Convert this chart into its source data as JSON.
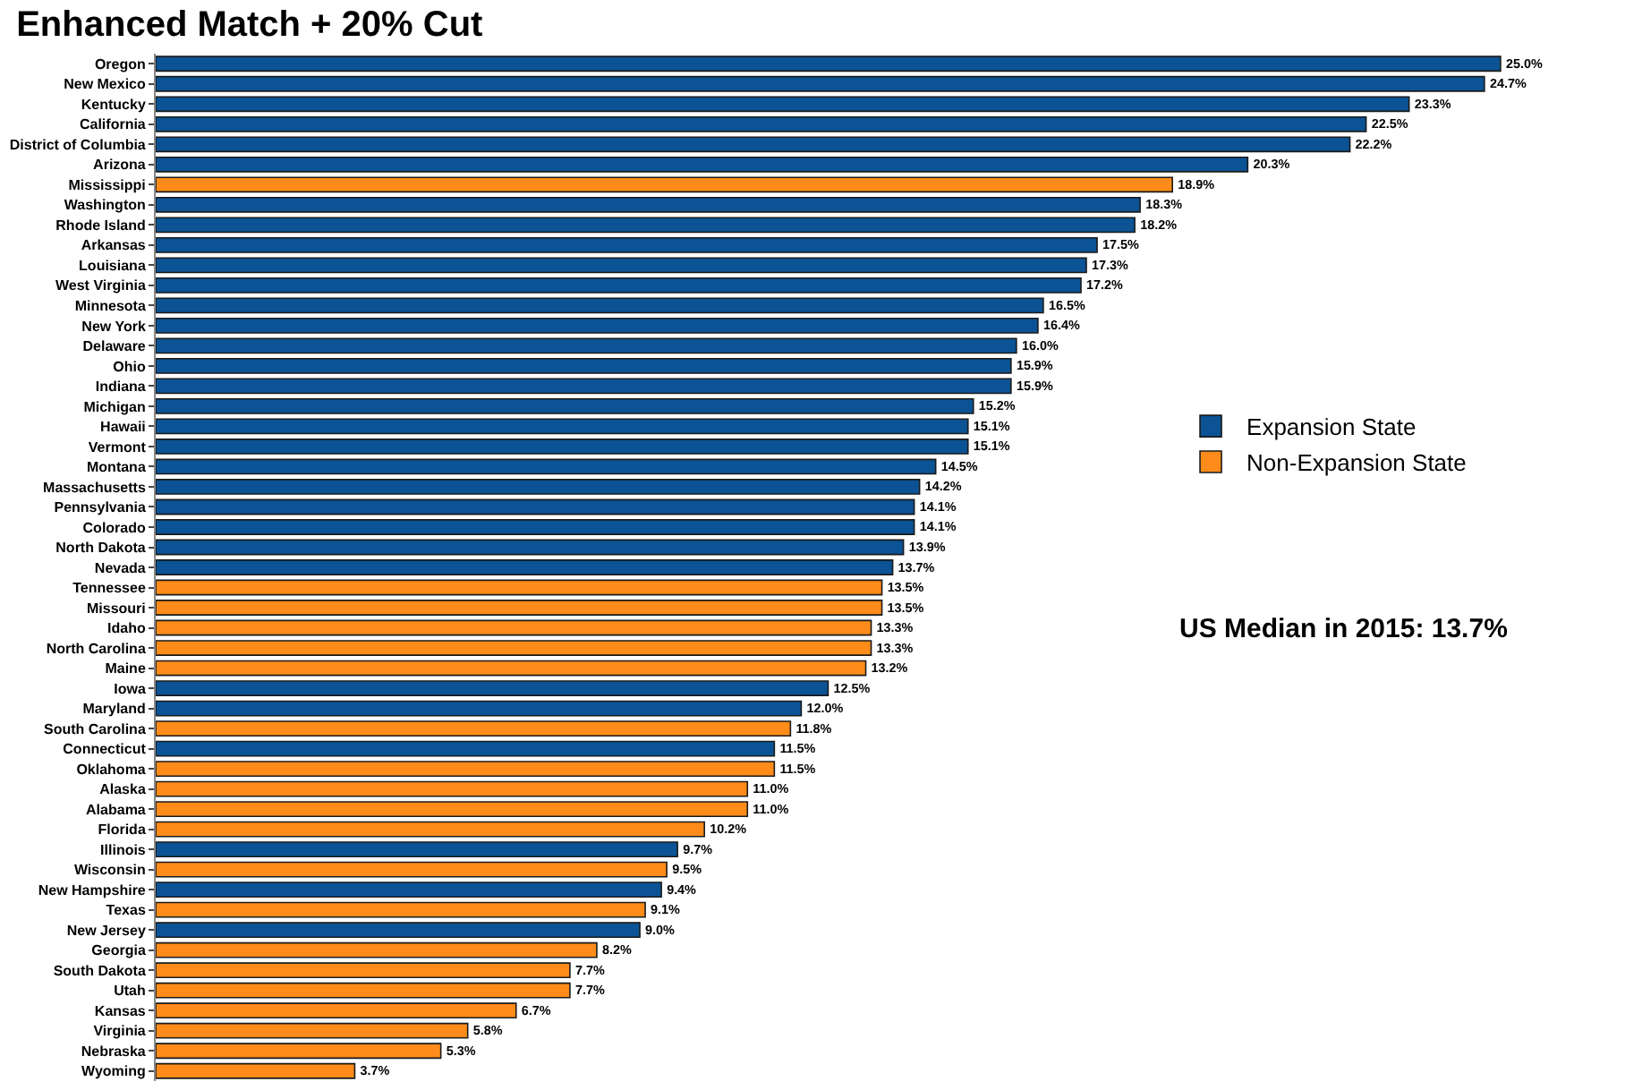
{
  "chart_data": {
    "type": "bar",
    "orientation": "horizontal",
    "title": "Enhanced Match + 20% Cut",
    "categories": [
      "Oregon",
      "New Mexico",
      "Kentucky",
      "California",
      "District of Columbia",
      "Arizona",
      "Mississippi",
      "Washington",
      "Rhode Island",
      "Arkansas",
      "Louisiana",
      "West Virginia",
      "Minnesota",
      "New York",
      "Delaware",
      "Ohio",
      "Indiana",
      "Michigan",
      "Hawaii",
      "Vermont",
      "Montana",
      "Massachusetts",
      "Pennsylvania",
      "Colorado",
      "North Dakota",
      "Nevada",
      "Tennessee",
      "Missouri",
      "Idaho",
      "North Carolina",
      "Maine",
      "Iowa",
      "Maryland",
      "South Carolina",
      "Connecticut",
      "Oklahoma",
      "Alaska",
      "Alabama",
      "Florida",
      "Illinois",
      "Wisconsin",
      "New Hampshire",
      "Texas",
      "New Jersey",
      "Georgia",
      "South Dakota",
      "Utah",
      "Kansas",
      "Virginia",
      "Nebraska",
      "Wyoming"
    ],
    "series": [
      {
        "name": "Expansion State",
        "color": "#0b5394",
        "values": [
          25.0,
          24.7,
          23.3,
          22.5,
          22.2,
          20.3,
          null,
          18.3,
          18.2,
          17.5,
          17.3,
          17.2,
          16.5,
          16.4,
          16.0,
          15.9,
          15.9,
          15.2,
          15.1,
          15.1,
          14.5,
          14.2,
          14.1,
          14.1,
          13.9,
          13.7,
          null,
          null,
          null,
          null,
          null,
          12.5,
          12.0,
          null,
          11.5,
          null,
          null,
          null,
          null,
          9.7,
          null,
          9.4,
          null,
          9.0,
          null,
          null,
          null,
          null,
          null,
          null,
          null
        ],
        "value_labels": [
          "25.0%",
          "24.7%",
          "23.3%",
          "22.5%",
          "22.2%",
          "20.3%",
          null,
          "18.3%",
          "18.2%",
          "17.5%",
          "17.3%",
          "17.2%",
          "16.5%",
          "16.4%",
          "16.0%",
          "15.9%",
          "15.9%",
          "15.2%",
          "15.1%",
          "15.1%",
          "14.5%",
          "14.2%",
          "14.1%",
          "14.1%",
          "13.9%",
          "13.7%",
          null,
          null,
          null,
          null,
          null,
          "12.5%",
          "12.0%",
          null,
          "11.5%",
          null,
          null,
          null,
          null,
          "9.7%",
          null,
          "9.4%",
          null,
          "9.0%",
          null,
          null,
          null,
          null,
          null,
          null,
          null
        ]
      },
      {
        "name": "Non-Expansion State",
        "color": "#ff8c1a",
        "values": [
          null,
          null,
          null,
          null,
          null,
          null,
          18.9,
          null,
          null,
          null,
          null,
          null,
          null,
          null,
          null,
          null,
          null,
          null,
          null,
          null,
          null,
          null,
          null,
          null,
          null,
          null,
          13.5,
          13.5,
          13.3,
          13.3,
          13.2,
          null,
          null,
          11.8,
          null,
          11.5,
          11.0,
          11.0,
          10.2,
          null,
          9.5,
          null,
          9.1,
          null,
          8.2,
          7.7,
          7.7,
          6.7,
          5.8,
          5.3,
          3.7
        ],
        "value_labels": [
          null,
          null,
          null,
          null,
          null,
          null,
          "18.9%",
          null,
          null,
          null,
          null,
          null,
          null,
          null,
          null,
          null,
          null,
          null,
          null,
          null,
          null,
          null,
          null,
          null,
          null,
          null,
          "13.5%",
          "13.5%",
          "13.3%",
          "13.3%",
          "13.2%",
          null,
          null,
          "11.8%",
          null,
          "11.5%",
          "11.0%",
          "11.0%",
          "10.2%",
          null,
          "9.5%",
          null,
          "9.1%",
          null,
          "8.2%",
          "7.7%",
          "7.7%",
          "6.7%",
          "5.8%",
          "5.3%",
          "3.7%"
        ]
      }
    ],
    "annotations": [
      "US Median in 2015: 13.7%"
    ],
    "legend": "right"
  }
}
